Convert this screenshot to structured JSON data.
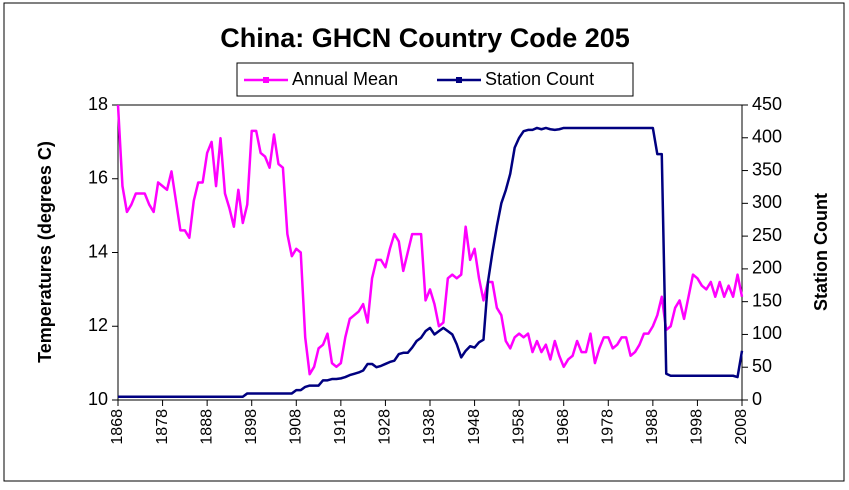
{
  "chart_data": {
    "type": "line",
    "title": "China: GHCN Country Code 205",
    "ylabel": "Temperatures (degrees C)",
    "y2label": "Station Count",
    "x": [
      1868,
      1869,
      1870,
      1871,
      1872,
      1873,
      1874,
      1875,
      1876,
      1877,
      1878,
      1879,
      1880,
      1881,
      1882,
      1883,
      1884,
      1885,
      1886,
      1887,
      1888,
      1889,
      1890,
      1891,
      1892,
      1893,
      1894,
      1895,
      1896,
      1897,
      1898,
      1899,
      1900,
      1901,
      1902,
      1903,
      1904,
      1905,
      1906,
      1907,
      1908,
      1909,
      1910,
      1911,
      1912,
      1913,
      1914,
      1915,
      1916,
      1917,
      1918,
      1919,
      1920,
      1921,
      1922,
      1923,
      1924,
      1925,
      1926,
      1927,
      1928,
      1929,
      1930,
      1931,
      1932,
      1933,
      1934,
      1935,
      1936,
      1937,
      1938,
      1939,
      1940,
      1941,
      1942,
      1943,
      1944,
      1945,
      1946,
      1947,
      1948,
      1949,
      1950,
      1951,
      1952,
      1953,
      1954,
      1955,
      1956,
      1957,
      1958,
      1959,
      1960,
      1961,
      1962,
      1963,
      1964,
      1965,
      1966,
      1967,
      1968,
      1969,
      1970,
      1971,
      1972,
      1973,
      1974,
      1975,
      1976,
      1977,
      1978,
      1979,
      1980,
      1981,
      1982,
      1983,
      1984,
      1985,
      1986,
      1987,
      1988,
      1989,
      1990,
      1991,
      1992,
      1993,
      1994,
      1995,
      1996,
      1997,
      1998,
      1999,
      2000,
      2001,
      2002,
      2003,
      2004,
      2005,
      2006,
      2007,
      2008
    ],
    "series": [
      {
        "name": "Annual Mean",
        "color": "#ff00ff",
        "values": [
          18.0,
          15.8,
          15.1,
          15.3,
          15.6,
          15.6,
          15.6,
          15.3,
          15.1,
          15.9,
          15.8,
          15.7,
          16.2,
          15.4,
          14.6,
          14.6,
          14.4,
          15.4,
          15.9,
          15.9,
          16.7,
          17.0,
          15.8,
          17.1,
          15.6,
          15.2,
          14.7,
          15.7,
          14.8,
          15.3,
          17.3,
          17.3,
          16.7,
          16.6,
          16.3,
          17.2,
          16.4,
          16.3,
          14.5,
          13.9,
          14.1,
          14.0,
          11.7,
          10.7,
          10.9,
          11.4,
          11.5,
          11.8,
          11.0,
          10.9,
          11.0,
          11.7,
          12.2,
          12.3,
          12.4,
          12.6,
          12.1,
          13.3,
          13.8,
          13.8,
          13.6,
          14.1,
          14.5,
          14.3,
          13.5,
          14.0,
          14.5,
          14.5,
          14.5,
          12.7,
          13.0,
          12.6,
          12.0,
          12.1,
          13.3,
          13.4,
          13.3,
          13.4,
          14.7,
          13.8,
          14.1,
          13.3,
          12.7,
          13.2,
          13.2,
          12.5,
          12.3,
          11.6,
          11.4,
          11.7,
          11.8,
          11.7,
          11.8,
          11.3,
          11.6,
          11.3,
          11.5,
          11.1,
          11.6,
          11.2,
          10.9,
          11.1,
          11.2,
          11.6,
          11.3,
          11.3,
          11.8,
          11.0,
          11.4,
          11.7,
          11.7,
          11.4,
          11.5,
          11.7,
          11.7,
          11.2,
          11.3,
          11.5,
          11.8,
          11.8,
          12.0,
          12.3,
          12.8,
          11.9,
          12.0,
          12.5,
          12.7,
          12.2,
          12.8,
          13.4,
          13.3,
          13.1,
          13.0,
          13.2,
          12.8,
          13.2,
          12.8,
          13.1,
          12.8,
          13.4,
          12.8
        ]
      },
      {
        "name": "Station Count",
        "color": "#000080",
        "axis": "y2",
        "values": [
          5,
          5,
          5,
          5,
          5,
          5,
          5,
          5,
          5,
          5,
          5,
          5,
          5,
          5,
          5,
          5,
          5,
          5,
          5,
          5,
          5,
          5,
          5,
          5,
          5,
          5,
          5,
          5,
          5,
          10,
          10,
          10,
          10,
          10,
          10,
          10,
          10,
          10,
          10,
          10,
          15,
          15,
          20,
          22,
          22,
          22,
          30,
          30,
          32,
          32,
          33,
          35,
          38,
          40,
          42,
          45,
          55,
          55,
          50,
          52,
          55,
          58,
          60,
          70,
          72,
          72,
          80,
          90,
          95,
          105,
          110,
          100,
          105,
          110,
          105,
          100,
          85,
          65,
          75,
          82,
          80,
          88,
          92,
          180,
          225,
          265,
          300,
          320,
          345,
          385,
          400,
          410,
          412,
          412,
          415,
          413,
          415,
          413,
          412,
          413,
          415,
          415,
          415,
          415,
          415,
          415,
          415,
          415,
          415,
          415,
          415,
          415,
          415,
          415,
          415,
          415,
          415,
          415,
          415,
          415,
          415,
          375,
          375,
          40,
          37,
          37,
          37,
          37,
          37,
          37,
          37,
          37,
          37,
          37,
          37,
          37,
          37,
          37,
          37,
          35,
          75
        ]
      }
    ],
    "xlim": [
      1868,
      2008
    ],
    "xticks": [
      1868,
      1878,
      1888,
      1898,
      1908,
      1918,
      1928,
      1938,
      1948,
      1958,
      1968,
      1978,
      1988,
      1998,
      2008
    ],
    "ylim": [
      10,
      18
    ],
    "yticks": [
      10,
      12,
      14,
      16,
      18
    ],
    "y2lim": [
      0,
      450
    ],
    "y2ticks": [
      0,
      50,
      100,
      150,
      200,
      250,
      300,
      350,
      400,
      450
    ]
  }
}
